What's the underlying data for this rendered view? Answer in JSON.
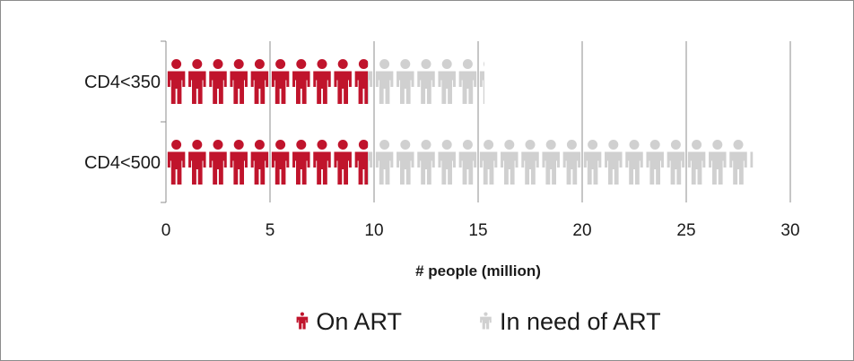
{
  "chart_data": {
    "type": "bar",
    "orientation": "horizontal",
    "mark": "person-icon pictograph",
    "categories": [
      "CD4<350",
      "CD4<500"
    ],
    "series": [
      {
        "name": "On ART",
        "values": [
          9.7,
          9.7
        ],
        "color": "#c0142c",
        "icon": "person-icon"
      },
      {
        "name": "In need of ART",
        "values": [
          15.3,
          28.2
        ],
        "color": "#d0d0d0",
        "icon": "person-icon"
      }
    ],
    "value_mode": "cumulative",
    "unit_per_icon": 1,
    "xlabel": "# people (million)",
    "xlim": [
      0,
      30
    ],
    "xticks": [
      0,
      5,
      10,
      15,
      20,
      25,
      30
    ],
    "xtick_labels": [
      "0",
      "5",
      "10",
      "15",
      "20",
      "25",
      "30"
    ],
    "grid": "vertical major gridlines",
    "legend": "bottom-center",
    "gridline_color": "#8c8c8c"
  }
}
